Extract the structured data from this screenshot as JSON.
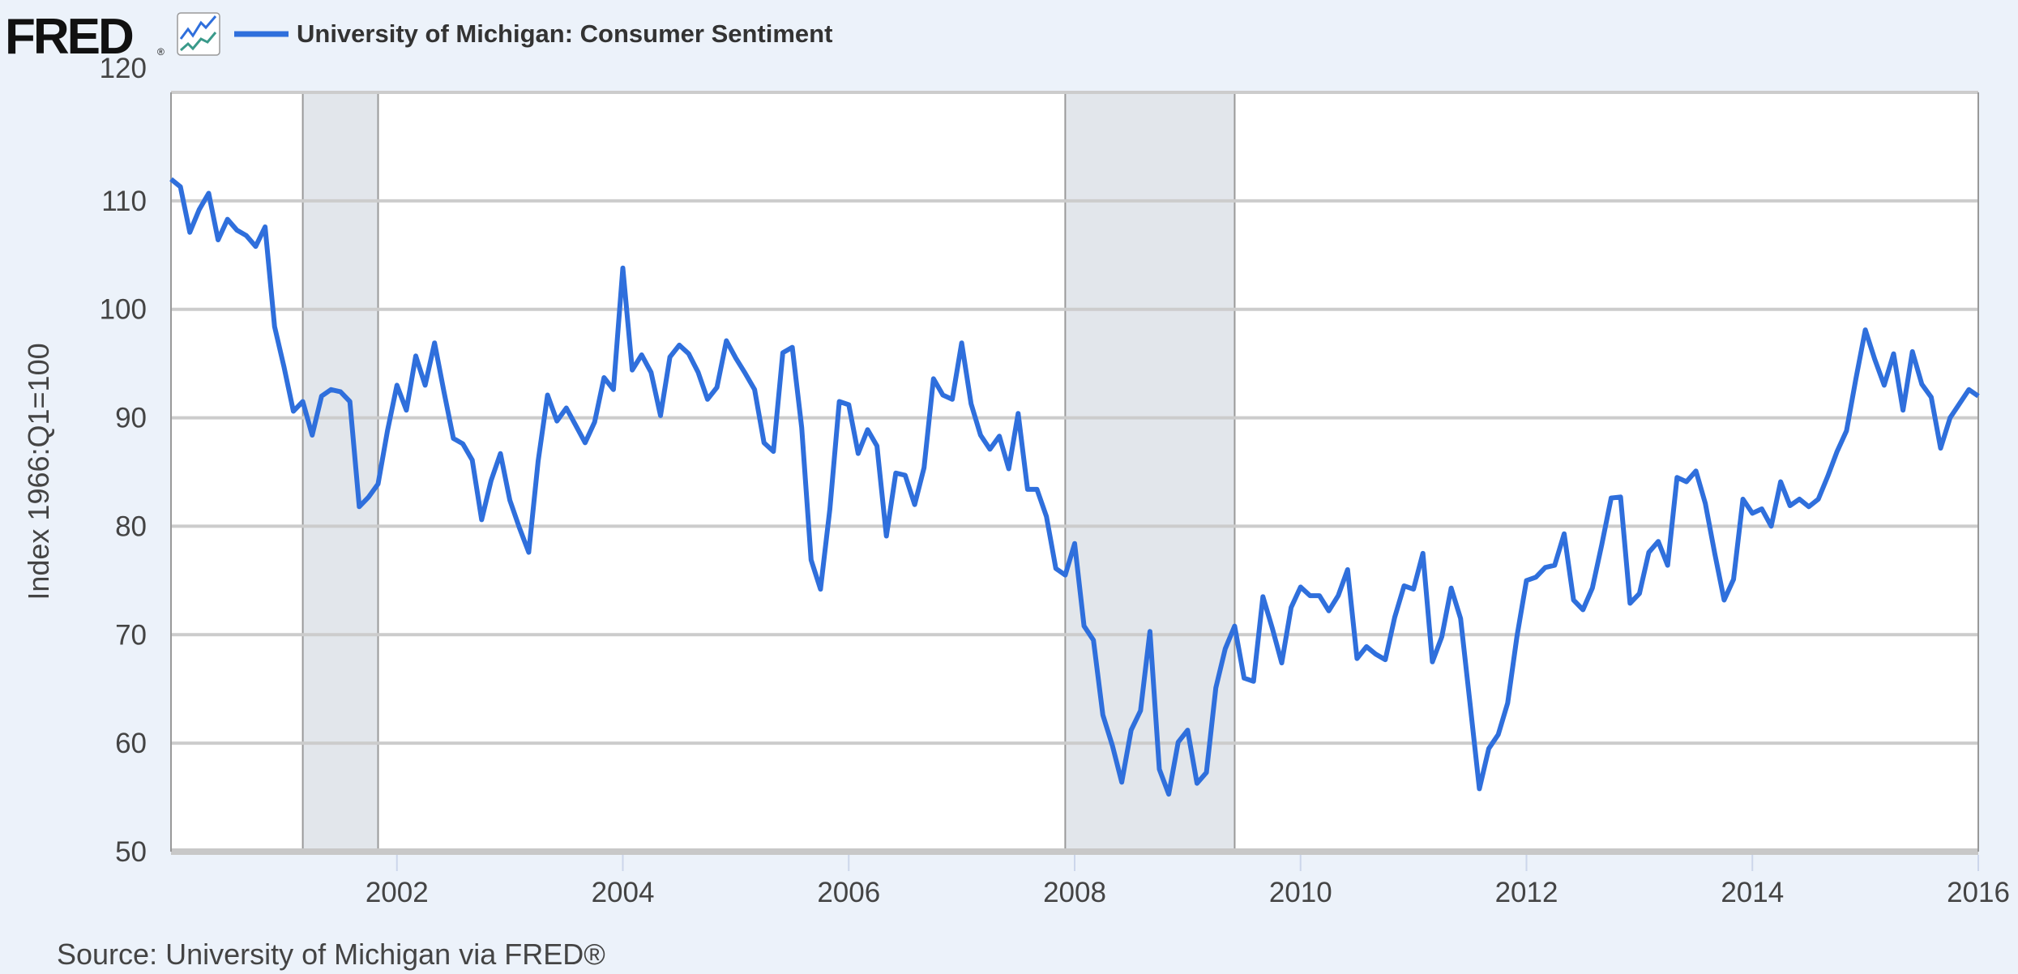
{
  "header": {
    "logo_text": "FRED",
    "logo_mark": "®",
    "icon": "line-chart-icon"
  },
  "chart_data": {
    "type": "line",
    "title": "University of Michigan: Consumer Sentiment",
    "ylabel": "Index 1966:Q1=100",
    "source": "Source: University of Michigan via FRED®",
    "ylim": [
      50,
      120
    ],
    "xlim": [
      "2000-01",
      "2016-01"
    ],
    "yticks": [
      50,
      60,
      70,
      80,
      90,
      100,
      110,
      120
    ],
    "xticks": [
      "2002",
      "2004",
      "2006",
      "2008",
      "2010",
      "2012",
      "2014",
      "2016"
    ],
    "grid": true,
    "line_color": "#2f6fdc",
    "recession_color": "#e2e6eb",
    "recessions": [
      [
        "2001-03",
        "2001-11"
      ],
      [
        "2007-12",
        "2009-06"
      ]
    ],
    "series": [
      {
        "name": "University of Michigan: Consumer Sentiment",
        "start": "2000-01",
        "frequency": "monthly",
        "values": [
          112.0,
          111.3,
          107.1,
          109.2,
          110.7,
          106.4,
          108.3,
          107.3,
          106.8,
          105.8,
          107.6,
          98.4,
          94.7,
          90.6,
          91.5,
          88.4,
          92.0,
          92.6,
          92.4,
          91.5,
          81.8,
          82.7,
          83.9,
          88.8,
          93.0,
          90.7,
          95.7,
          93.0,
          96.9,
          92.4,
          88.1,
          87.6,
          86.1,
          80.6,
          84.2,
          86.7,
          82.4,
          79.9,
          77.6,
          86.0,
          92.1,
          89.7,
          90.9,
          89.3,
          87.7,
          89.6,
          93.7,
          92.6,
          103.8,
          94.4,
          95.8,
          94.2,
          90.2,
          95.6,
          96.7,
          95.9,
          94.2,
          91.7,
          92.8,
          97.1,
          95.5,
          94.1,
          92.6,
          87.7,
          86.9,
          96.0,
          96.5,
          89.1,
          76.9,
          74.2,
          81.6,
          91.5,
          91.2,
          86.7,
          88.9,
          87.4,
          79.1,
          84.9,
          84.7,
          82.0,
          85.4,
          93.6,
          92.1,
          91.7,
          96.9,
          91.3,
          88.4,
          87.1,
          88.3,
          85.3,
          90.4,
          83.4,
          83.4,
          80.9,
          76.1,
          75.5,
          78.4,
          70.8,
          69.5,
          62.6,
          59.8,
          56.4,
          61.2,
          63.0,
          70.3,
          57.6,
          55.3,
          60.1,
          61.2,
          56.3,
          57.3,
          65.1,
          68.7,
          70.8,
          66.0,
          65.7,
          73.5,
          70.6,
          67.4,
          72.5,
          74.4,
          73.6,
          73.6,
          72.2,
          73.6,
          76.0,
          67.8,
          68.9,
          68.2,
          67.7,
          71.6,
          74.5,
          74.2,
          77.5,
          67.5,
          69.8,
          74.3,
          71.5,
          63.7,
          55.8,
          59.5,
          60.8,
          63.7,
          69.9,
          75.0,
          75.3,
          76.2,
          76.4,
          79.3,
          73.2,
          72.3,
          74.3,
          78.3,
          82.6,
          82.7,
          72.9,
          73.8,
          77.6,
          78.6,
          76.4,
          84.5,
          84.1,
          85.1,
          82.1,
          77.5,
          73.2,
          75.1,
          82.5,
          81.2,
          81.6,
          80.0,
          84.1,
          81.9,
          82.5,
          81.8,
          82.5,
          84.6,
          86.9,
          88.8,
          93.6,
          98.1,
          95.4,
          93.0,
          95.9,
          90.7,
          96.1,
          93.1,
          91.9,
          87.2,
          90.0,
          91.3,
          92.6,
          92.0
        ]
      }
    ]
  }
}
